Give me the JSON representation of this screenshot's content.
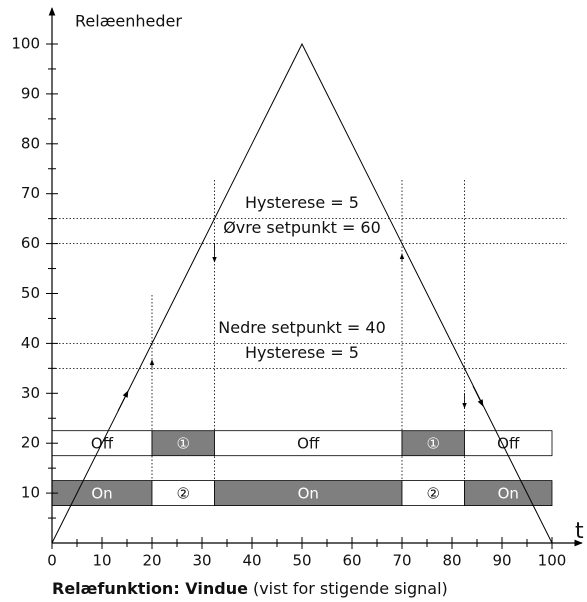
{
  "chart_data": {
    "type": "line",
    "y_axis_label": "Relæenheder",
    "x_axis_label": "t",
    "caption_bold": "Relæfunktion: Vindue",
    "caption": "(vist for stigende signal)",
    "x": [
      0,
      50,
      100
    ],
    "values": [
      0,
      100,
      0
    ],
    "color": "#000000",
    "xlim": [
      0,
      100
    ],
    "ylim": [
      0,
      100
    ],
    "xticks": [
      0,
      10,
      20,
      30,
      40,
      50,
      60,
      70,
      80,
      90,
      100
    ],
    "yticks": [
      10,
      20,
      30,
      40,
      50,
      60,
      70,
      80,
      90,
      100
    ],
    "xminorticks": [
      5,
      15,
      25,
      35,
      45,
      55,
      65,
      75,
      85,
      95
    ],
    "yminorticks": [
      5,
      15,
      25,
      35,
      45,
      55,
      65,
      75,
      85,
      95
    ],
    "thresholds": [
      {
        "value": 65,
        "label": "Hysterese = 5"
      },
      {
        "value": 60,
        "label": "Øvre setpunkt = 60"
      },
      {
        "value": 40,
        "label": "Nedre setpunkt = 40"
      },
      {
        "value": 35,
        "label": "Hysterese = 5"
      }
    ],
    "switch_x": [
      20,
      32.5,
      70,
      82.5
    ],
    "on_color": "#7f7f7f",
    "rows": [
      {
        "level": 20,
        "segments": [
          {
            "start": 0,
            "end": 20,
            "label": "Off",
            "on": false
          },
          {
            "start": 20,
            "end": 32.5,
            "label": "①",
            "on": true
          },
          {
            "start": 32.5,
            "end": 70,
            "label": "Off",
            "on": false
          },
          {
            "start": 70,
            "end": 82.5,
            "label": "①",
            "on": true
          },
          {
            "start": 82.5,
            "end": 100,
            "label": "Off",
            "on": false
          }
        ]
      },
      {
        "level": 10,
        "segments": [
          {
            "start": 0,
            "end": 20,
            "label": "On",
            "on": true
          },
          {
            "start": 20,
            "end": 32.5,
            "label": "②",
            "on": false
          },
          {
            "start": 32.5,
            "end": 70,
            "label": "On",
            "on": true
          },
          {
            "start": 70,
            "end": 82.5,
            "label": "②",
            "on": false
          },
          {
            "start": 82.5,
            "end": 100,
            "label": "On",
            "on": true
          }
        ]
      }
    ]
  }
}
